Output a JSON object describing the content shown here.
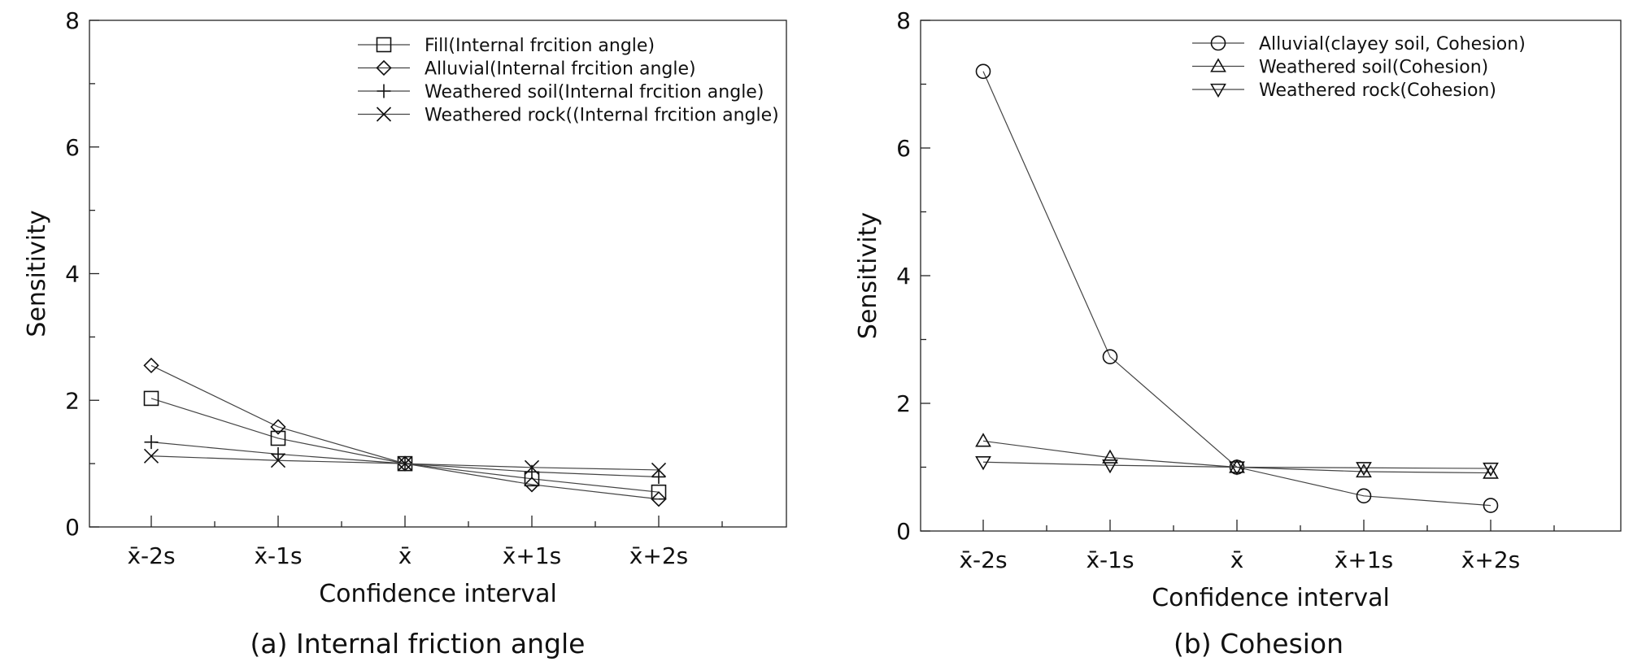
{
  "chart_data": [
    {
      "type": "line",
      "caption": "(a) Internal friction angle",
      "xlabel": "Confidence interval",
      "ylabel": "Sensitivity",
      "ylim": [
        0,
        8
      ],
      "yticks": [
        "0",
        "2",
        "4",
        "6",
        "8"
      ],
      "categories": [
        "x̄-2s",
        "x̄-1s",
        "x̄",
        "x̄+1s",
        "x̄+2s"
      ],
      "legend_position": "top-right",
      "series": [
        {
          "name": "Fill(Internal frcition angle)",
          "marker": "square",
          "values": [
            2.03,
            1.4,
            1.0,
            0.76,
            0.55
          ]
        },
        {
          "name": "Alluvial(Internal frcition angle)",
          "marker": "diamond",
          "values": [
            2.55,
            1.58,
            1.0,
            0.67,
            0.44
          ]
        },
        {
          "name": "Weathered soil(Internal frcition angle)",
          "marker": "plus",
          "values": [
            1.34,
            1.15,
            1.0,
            0.87,
            0.79
          ]
        },
        {
          "name": "Weathered rock((Internal frcition angle)",
          "marker": "x",
          "values": [
            1.12,
            1.05,
            1.0,
            0.94,
            0.9
          ]
        }
      ]
    },
    {
      "type": "line",
      "caption": "(b) Cohesion",
      "xlabel": "Confidence interval",
      "ylabel": "Sensitivity",
      "ylim": [
        0,
        8
      ],
      "yticks": [
        "0",
        "2",
        "4",
        "6",
        "8"
      ],
      "categories": [
        "x̄-2s",
        "x̄-1s",
        "x̄",
        "x̄+1s",
        "x̄+2s"
      ],
      "legend_position": "top-right",
      "series": [
        {
          "name": "Alluvial(clayey soil, Cohesion)",
          "marker": "circle",
          "values": [
            7.2,
            2.73,
            1.0,
            0.55,
            0.4
          ]
        },
        {
          "name": "Weathered soil(Cohesion)",
          "marker": "triangle-up",
          "values": [
            1.41,
            1.15,
            1.0,
            0.93,
            0.91
          ]
        },
        {
          "name": "Weathered rock(Cohesion)",
          "marker": "triangle-down",
          "values": [
            1.08,
            1.03,
            1.0,
            0.99,
            0.98
          ]
        }
      ]
    }
  ]
}
